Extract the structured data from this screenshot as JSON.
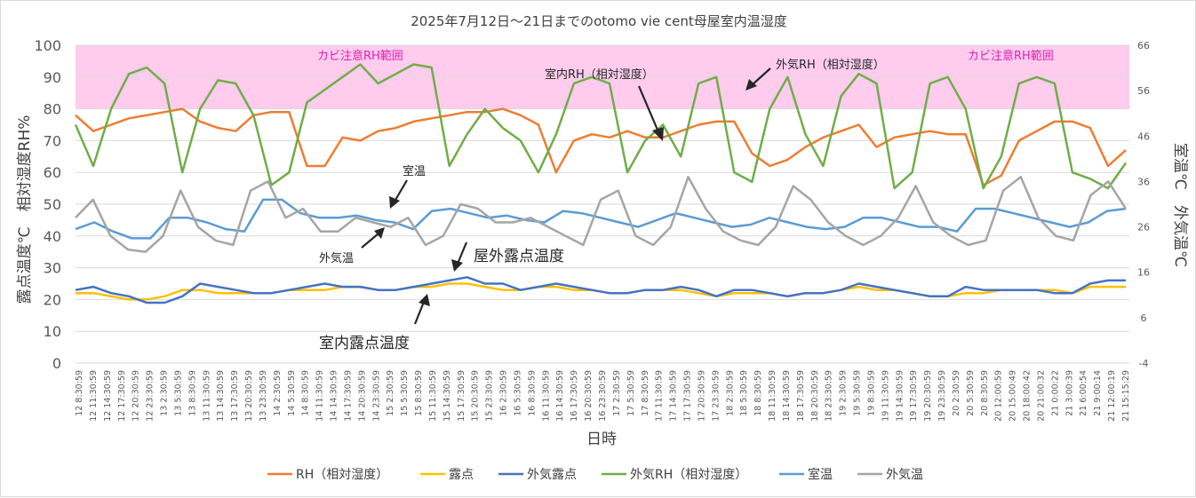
{
  "chart_data": {
    "type": "line",
    "title": "2025年7月12日～21日までのotomo vie cent母屋室内温湿度",
    "xlabel": "日時",
    "ylabel_left": "露点温度℃　相対湿度RH%",
    "ylabel_right": "室温℃　外気温℃",
    "ylim_left": [
      0,
      100
    ],
    "yticks_left": [
      0,
      10,
      20,
      30,
      40,
      50,
      60,
      70,
      80,
      90,
      100
    ],
    "ylim_right": [
      -4,
      66
    ],
    "yticks_right": [
      -4,
      6,
      16,
      26,
      36,
      46,
      56,
      66
    ],
    "x_tick_labels": [
      "12 8:30:59",
      "12 11:30:59",
      "12 14:30:59",
      "12 17:30:59",
      "12 20:30:59",
      "12 23:30:59",
      "13 2:30:59",
      "13 5:30:59",
      "13 8:30:59",
      "13 11:30:59",
      "13 14:30:59",
      "13 17:30:59",
      "13 20:30:59",
      "13 23:30:59",
      "14 2:30:59",
      "14 5:30:59",
      "14 8:30:59",
      "14 11:30:59",
      "14 14:30:59",
      "14 17:30:59",
      "14 20:30:59",
      "14 23:30:59",
      "15 2:30:59",
      "15 5:30:59",
      "15 8:30:59",
      "15 11:30:59",
      "15 14:30:59",
      "15 17:30:59",
      "15 20:30:59",
      "15 23:30:59",
      "16 2:30:59",
      "16 5:30:59",
      "16 8:30:59",
      "16 11:30:59",
      "16 14:30:59",
      "16 17:30:59",
      "16 20:30:59",
      "16 23:30:59",
      "17 2:30:59",
      "17 5:30:59",
      "17 8:30:59",
      "17 11:30:59",
      "17 14:30:59",
      "17 17:30:59",
      "17 20:30:59",
      "17 23:30:59",
      "18 2:30:59",
      "18 5:30:59",
      "18 8:30:59",
      "18 11:30:59",
      "18 14:30:59",
      "18 17:30:59",
      "18 20:30:59",
      "18 23:30:59",
      "19 2:30:59",
      "19 5:30:59",
      "19 8:30:59",
      "19 11:30:59",
      "19 14:30:59",
      "19 17:30:59",
      "19 20:30:59",
      "19 23:30:59",
      "20 2:30:59",
      "20 5:30:59",
      "20 8:30:59",
      "20 12:00:59",
      "20 15:00:49",
      "20 18:00:42",
      "20 21:00:32",
      "21 0:00:22",
      "21 3:00:39",
      "21 6:00:54",
      "21 9:00:14",
      "21 12:00:19",
      "21 15:15:29"
    ],
    "band": {
      "from": 80,
      "to": 100,
      "color": "#ffccee",
      "labels": [
        "カビ注意RH範囲",
        "カビ注意RH範囲"
      ]
    },
    "series": [
      {
        "name": "RH（相対湿度）",
        "axis": "left",
        "color": "#ed7d31",
        "values": [
          78,
          73,
          75,
          77,
          78,
          79,
          80,
          76,
          74,
          73,
          78,
          79,
          79,
          62,
          62,
          71,
          70,
          73,
          74,
          76,
          77,
          78,
          79,
          79,
          80,
          78,
          75,
          60,
          70,
          72,
          71,
          73,
          71,
          71,
          73,
          75,
          76,
          76,
          66,
          62,
          64,
          68,
          71,
          73,
          75,
          68,
          71,
          72,
          73,
          72,
          72,
          56,
          59,
          70,
          73,
          76,
          76,
          74,
          62,
          67
        ]
      },
      {
        "name": "露点",
        "axis": "left",
        "color": "#ffc000",
        "values": [
          22,
          22,
          21,
          20,
          20,
          21,
          23,
          23,
          22,
          22,
          22,
          22,
          23,
          23,
          23,
          24,
          24,
          23,
          23,
          24,
          24,
          25,
          25,
          24,
          23,
          23,
          24,
          24,
          23,
          23,
          22,
          22,
          23,
          23,
          23,
          22,
          21,
          22,
          22,
          22,
          21,
          22,
          22,
          23,
          24,
          23,
          23,
          22,
          21,
          21,
          22,
          22,
          23,
          23,
          23,
          23,
          22,
          24,
          24,
          24
        ]
      },
      {
        "name": "外気露点",
        "axis": "left",
        "color": "#4472c4",
        "values": [
          23,
          24,
          22,
          21,
          19,
          19,
          21,
          25,
          24,
          23,
          22,
          22,
          23,
          24,
          25,
          24,
          24,
          23,
          23,
          24,
          25,
          26,
          27,
          25,
          25,
          23,
          24,
          25,
          24,
          23,
          22,
          22,
          23,
          23,
          24,
          23,
          21,
          23,
          23,
          22,
          21,
          22,
          22,
          23,
          25,
          24,
          23,
          22,
          21,
          21,
          24,
          23,
          23,
          23,
          23,
          22,
          22,
          25,
          26,
          26
        ]
      },
      {
        "name": "外気RH（相対湿度）",
        "axis": "left",
        "color": "#70ad47",
        "values": [
          75,
          62,
          80,
          91,
          93,
          88,
          60,
          80,
          89,
          88,
          78,
          56,
          60,
          82,
          86,
          90,
          94,
          88,
          91,
          94,
          93,
          62,
          72,
          80,
          74,
          70,
          60,
          72,
          88,
          90,
          88,
          60,
          70,
          75,
          65,
          88,
          90,
          60,
          57,
          80,
          90,
          72,
          62,
          84,
          91,
          88,
          55,
          60,
          88,
          90,
          80,
          55,
          65,
          88,
          90,
          88,
          60,
          58,
          55,
          63
        ]
      },
      {
        "name": "室温",
        "axis": "right",
        "color": "#5b9bd5",
        "values": [
          25.5,
          27,
          25,
          23.5,
          23.5,
          28,
          28,
          27,
          25.5,
          25,
          32,
          32,
          29,
          28,
          28,
          28.5,
          27.5,
          27,
          25.5,
          29.5,
          30,
          29,
          28,
          28.5,
          27.5,
          27,
          29.5,
          29,
          28,
          27,
          26,
          27.5,
          29,
          28,
          27,
          26,
          26.5,
          28,
          27,
          26,
          25.5,
          26,
          28,
          28,
          27,
          26,
          26,
          25,
          30,
          30,
          29,
          28,
          27,
          26,
          27,
          29.5,
          30
        ]
      },
      {
        "name": "外気温",
        "axis": "right",
        "color": "#a5a5a5",
        "values": [
          28,
          32,
          24,
          21,
          20.5,
          24,
          34,
          26,
          23,
          22,
          34,
          36,
          28,
          30,
          25,
          25,
          28,
          27,
          26,
          28,
          22,
          24,
          31,
          30,
          27,
          27,
          28,
          26,
          24,
          22,
          32,
          34,
          24,
          22,
          26,
          37,
          30,
          25,
          23,
          22,
          26,
          35,
          32,
          27,
          24,
          22,
          24,
          28,
          35,
          27,
          24,
          22,
          23,
          34,
          37,
          28,
          24,
          23,
          33,
          36,
          30
        ]
      }
    ],
    "annotations": [
      "室内RH（相対湿度）",
      "外気RH（相対湿度）",
      "室温",
      "外気温",
      "屋外露点温度",
      "室内露点温度"
    ],
    "legend_position": "bottom"
  }
}
